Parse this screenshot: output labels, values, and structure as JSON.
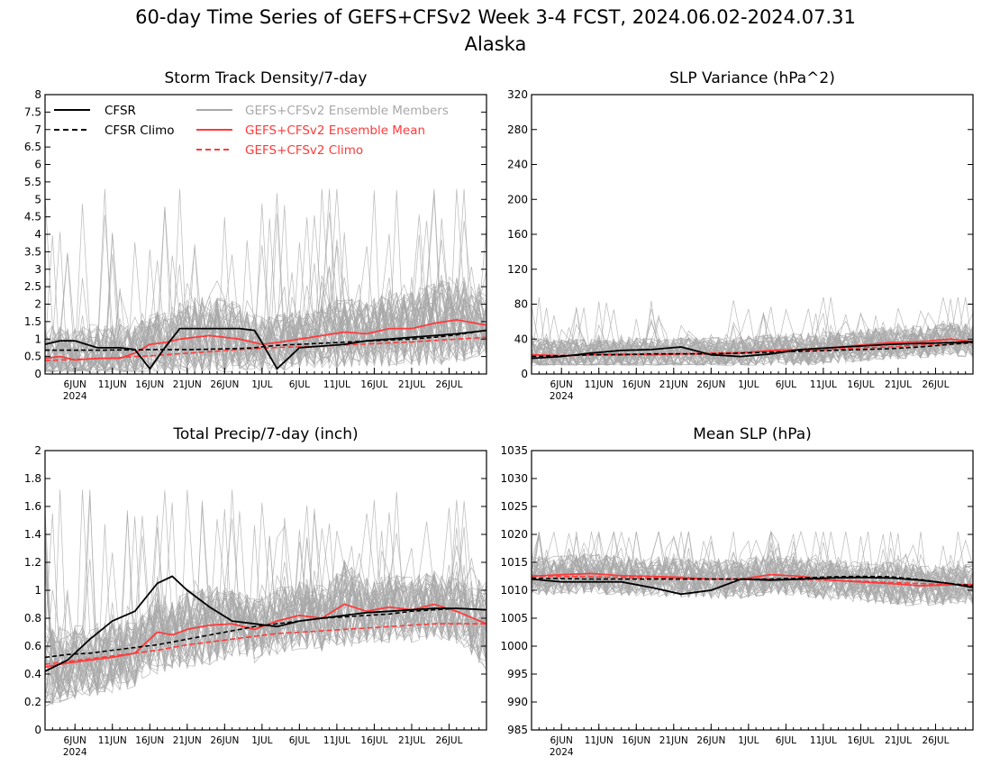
{
  "figure": {
    "title_line1": "60-day Time Series of GEFS+CFSv2 Week 3-4 FCST, 2024.06.02-2024.07.31",
    "title_line2": "Alaska"
  },
  "colors": {
    "cfsr": "#000000",
    "ensemble_members": "#a8a8a8",
    "ensemble_mean": "#ff3a3a",
    "gefs_climo": "#ff3a3a"
  },
  "legend": {
    "cfsr": "CFSR",
    "cfsr_climo": "CFSR Climo",
    "members": "GEFS+CFSv2 Ensemble Members",
    "mean": "GEFS+CFSv2 Ensemble Mean",
    "gefs_climo": "GEFS+CFSv2 Climo"
  },
  "x_axis": {
    "start_date": "2024-06-02",
    "end_date": "2024-07-31",
    "tick_labels": [
      "6JUN",
      "11JUN",
      "16JUN",
      "21JUN",
      "26JUN",
      "1JUL",
      "6JUL",
      "11JUL",
      "16JUL",
      "21JUL",
      "26JUL"
    ],
    "tick_dates": [
      "2024-06-06",
      "2024-06-11",
      "2024-06-16",
      "2024-06-21",
      "2024-06-26",
      "2024-07-01",
      "2024-07-06",
      "2024-07-11",
      "2024-07-16",
      "2024-07-21",
      "2024-07-26"
    ],
    "year_label": "2024"
  },
  "chart_data": [
    {
      "type": "line",
      "title": "Storm Track Density/7-day",
      "ylim": [
        0,
        8
      ],
      "ytick_labels": [
        "0",
        "0.5",
        "1",
        "1.5",
        "2",
        "2.5",
        "3",
        "3.5",
        "4",
        "4.5",
        "5",
        "5.5",
        "6",
        "6.5",
        "7",
        "7.5",
        "8"
      ],
      "legend_location": "top",
      "x": [
        "2024-06-02",
        "2024-06-04",
        "2024-06-06",
        "2024-06-09",
        "2024-06-12",
        "2024-06-14",
        "2024-06-16",
        "2024-06-18",
        "2024-06-20",
        "2024-06-22",
        "2024-06-24",
        "2024-06-26",
        "2024-06-28",
        "2024-06-30",
        "2024-07-01",
        "2024-07-03",
        "2024-07-06",
        "2024-07-09",
        "2024-07-12",
        "2024-07-15",
        "2024-07-18",
        "2024-07-21",
        "2024-07-24",
        "2024-07-27",
        "2024-07-31"
      ],
      "series": [
        {
          "name": "CFSR",
          "style": "solid",
          "color": "#000000",
          "values": [
            0.85,
            0.95,
            0.95,
            0.75,
            0.75,
            0.7,
            0.15,
            0.75,
            1.3,
            1.3,
            1.3,
            1.3,
            1.3,
            1.25,
            0.9,
            0.15,
            0.75,
            0.8,
            0.85,
            0.95,
            1.0,
            1.05,
            1.1,
            1.15,
            1.25
          ]
        },
        {
          "name": "CFSR Climo",
          "style": "dashed",
          "color": "#000000",
          "values": [
            0.68,
            0.68,
            0.68,
            0.68,
            0.69,
            0.69,
            0.7,
            0.7,
            0.7,
            0.7,
            0.71,
            0.72,
            0.73,
            0.75,
            0.78,
            0.82,
            0.85,
            0.88,
            0.91,
            0.94,
            0.97,
            1.0,
            1.05,
            1.12,
            1.25
          ]
        },
        {
          "name": "GEFS+CFSv2 Ensemble Mean",
          "style": "solid",
          "color": "#ff3a3a",
          "values": [
            0.45,
            0.5,
            0.4,
            0.45,
            0.45,
            0.6,
            0.85,
            0.9,
            1.0,
            1.05,
            1.1,
            1.05,
            1.0,
            0.9,
            0.85,
            0.9,
            1.0,
            1.1,
            1.2,
            1.15,
            1.3,
            1.3,
            1.45,
            1.55,
            1.4
          ]
        },
        {
          "name": "GEFS+CFSv2 Climo",
          "style": "dashed",
          "color": "#ff3a3a",
          "values": [
            0.38,
            0.4,
            0.42,
            0.44,
            0.47,
            0.5,
            0.52,
            0.55,
            0.58,
            0.61,
            0.64,
            0.67,
            0.7,
            0.72,
            0.74,
            0.76,
            0.78,
            0.8,
            0.83,
            0.86,
            0.89,
            0.92,
            0.96,
            1.0,
            1.05
          ]
        }
      ],
      "ensemble": {
        "name": "GEFS+CFSv2 Ensemble Members",
        "count": 48,
        "range": [
          0.05,
          5.3
        ],
        "color": "#a8a8a8"
      }
    },
    {
      "type": "line",
      "title": "SLP Variance (hPa^2)",
      "ylim": [
        0,
        320
      ],
      "ytick_labels": [
        "0",
        "40",
        "80",
        "120",
        "160",
        "200",
        "240",
        "280",
        "320"
      ],
      "x": [
        "2024-06-02",
        "2024-06-06",
        "2024-06-10",
        "2024-06-14",
        "2024-06-18",
        "2024-06-22",
        "2024-06-26",
        "2024-06-30",
        "2024-07-04",
        "2024-07-08",
        "2024-07-12",
        "2024-07-16",
        "2024-07-20",
        "2024-07-24",
        "2024-07-28",
        "2024-07-31"
      ],
      "series": [
        {
          "name": "CFSR",
          "style": "solid",
          "color": "#000000",
          "values": [
            18,
            20,
            24,
            27,
            28,
            31,
            22,
            20,
            23,
            28,
            30,
            32,
            34,
            35,
            36,
            37
          ]
        },
        {
          "name": "CFSR Climo",
          "style": "dashed",
          "color": "#000000",
          "values": [
            20,
            21,
            22,
            22,
            23,
            23,
            23,
            24,
            25,
            26,
            27,
            28,
            29,
            31,
            34,
            36
          ]
        },
        {
          "name": "GEFS+CFSv2 Ensemble Mean",
          "style": "solid",
          "color": "#ff3a3a",
          "values": [
            22,
            21,
            22,
            23,
            22,
            23,
            23,
            24,
            27,
            28,
            30,
            33,
            36,
            37,
            40,
            37
          ]
        },
        {
          "name": "GEFS+CFSv2 Climo",
          "style": "dashed",
          "color": "#ff3a3a",
          "values": [
            21,
            21,
            22,
            22,
            23,
            23,
            24,
            25,
            26,
            27,
            28,
            30,
            31,
            33,
            35,
            36
          ]
        }
      ],
      "ensemble": {
        "name": "GEFS+CFSv2 Ensemble Members",
        "count": 48,
        "range": [
          10,
          88
        ],
        "color": "#a8a8a8"
      }
    },
    {
      "type": "line",
      "title": "Total Precip/7-day (inch)",
      "ylim": [
        0,
        2
      ],
      "ytick_labels": [
        "0",
        "0.2",
        "0.4",
        "0.6",
        "0.8",
        "1",
        "1.2",
        "1.4",
        "1.6",
        "1.8",
        "2"
      ],
      "x": [
        "2024-06-02",
        "2024-06-05",
        "2024-06-08",
        "2024-06-11",
        "2024-06-14",
        "2024-06-17",
        "2024-06-19",
        "2024-06-21",
        "2024-06-24",
        "2024-06-27",
        "2024-06-30",
        "2024-07-03",
        "2024-07-06",
        "2024-07-09",
        "2024-07-12",
        "2024-07-15",
        "2024-07-18",
        "2024-07-21",
        "2024-07-24",
        "2024-07-27",
        "2024-07-31"
      ],
      "series": [
        {
          "name": "CFSR",
          "style": "solid",
          "color": "#000000",
          "values": [
            0.42,
            0.5,
            0.65,
            0.78,
            0.85,
            1.05,
            1.1,
            1.0,
            0.88,
            0.78,
            0.76,
            0.74,
            0.78,
            0.8,
            0.82,
            0.84,
            0.85,
            0.86,
            0.87,
            0.87,
            0.86
          ]
        },
        {
          "name": "CFSR Climo",
          "style": "dashed",
          "color": "#000000",
          "values": [
            0.52,
            0.54,
            0.55,
            0.57,
            0.59,
            0.61,
            0.63,
            0.65,
            0.68,
            0.71,
            0.74,
            0.76,
            0.78,
            0.8,
            0.81,
            0.82,
            0.83,
            0.85,
            0.86,
            0.87,
            0.86
          ]
        },
        {
          "name": "GEFS+CFSv2 Ensemble Mean",
          "style": "solid",
          "color": "#ff3a3a",
          "values": [
            0.45,
            0.48,
            0.5,
            0.52,
            0.55,
            0.7,
            0.68,
            0.72,
            0.75,
            0.76,
            0.72,
            0.78,
            0.82,
            0.8,
            0.9,
            0.85,
            0.88,
            0.86,
            0.9,
            0.85,
            0.76
          ]
        },
        {
          "name": "GEFS+CFSv2 Climo",
          "style": "dashed",
          "color": "#ff3a3a",
          "values": [
            0.47,
            0.49,
            0.51,
            0.53,
            0.55,
            0.57,
            0.59,
            0.61,
            0.63,
            0.65,
            0.67,
            0.69,
            0.7,
            0.71,
            0.72,
            0.73,
            0.74,
            0.75,
            0.76,
            0.76,
            0.76
          ]
        }
      ],
      "ensemble": {
        "name": "GEFS+CFSv2 Ensemble Members",
        "count": 48,
        "range": [
          0.13,
          1.72
        ],
        "color": "#a8a8a8"
      }
    },
    {
      "type": "line",
      "title": "Mean SLP (hPa)",
      "ylim": [
        985,
        1035
      ],
      "ytick_labels": [
        "985",
        "990",
        "995",
        "1000",
        "1005",
        "1010",
        "1015",
        "1020",
        "1025",
        "1030",
        "1035"
      ],
      "x": [
        "2024-06-02",
        "2024-06-06",
        "2024-06-10",
        "2024-06-14",
        "2024-06-18",
        "2024-06-22",
        "2024-06-26",
        "2024-06-30",
        "2024-07-04",
        "2024-07-08",
        "2024-07-12",
        "2024-07-16",
        "2024-07-20",
        "2024-07-24",
        "2024-07-28",
        "2024-07-31"
      ],
      "series": [
        {
          "name": "CFSR",
          "style": "solid",
          "color": "#000000",
          "values": [
            1012,
            1011.5,
            1011.5,
            1011.5,
            1010.5,
            1009.3,
            1010,
            1012,
            1011.8,
            1012,
            1012.2,
            1012.3,
            1012.2,
            1011.8,
            1011.2,
            1010.5
          ]
        },
        {
          "name": "CFSR Climo",
          "style": "dashed",
          "color": "#000000",
          "values": [
            1012.2,
            1012.1,
            1012,
            1012,
            1012,
            1012,
            1012,
            1012,
            1012,
            1012.2,
            1012.4,
            1012.5,
            1012.4,
            1011.9,
            1011.2,
            1010.8
          ]
        },
        {
          "name": "GEFS+CFSv2 Ensemble Mean",
          "style": "solid",
          "color": "#ff3a3a",
          "values": [
            1012.5,
            1012.8,
            1013,
            1012.6,
            1012.5,
            1012.3,
            1012,
            1012,
            1012.8,
            1012.5,
            1011.8,
            1011.5,
            1011.2,
            1010.8,
            1011,
            1011
          ]
        },
        {
          "name": "GEFS+CFSv2 Climo",
          "style": "dashed",
          "color": "#ff3a3a",
          "values": [
            1012.6,
            1012.5,
            1012.4,
            1012.3,
            1012.2,
            1012.1,
            1012,
            1012,
            1012,
            1011.9,
            1011.8,
            1011.6,
            1011.4,
            1011.2,
            1011,
            1010.8
          ]
        }
      ],
      "ensemble": {
        "name": "GEFS+CFSv2 Ensemble Members",
        "count": 48,
        "range": [
          1002.5,
          1020.5
        ],
        "color": "#a8a8a8"
      }
    }
  ]
}
